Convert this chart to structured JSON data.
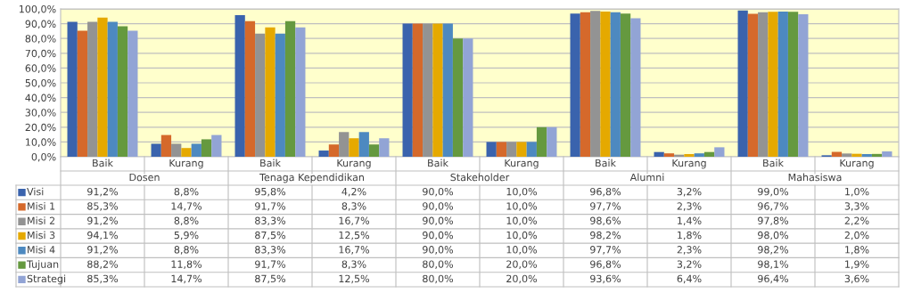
{
  "chart_data": {
    "type": "bar",
    "categories": [
      "Baik",
      "Kurang",
      "Baik",
      "Kurang",
      "Baik",
      "Kurang",
      "Baik",
      "Kurang",
      "Baik",
      "Kurang"
    ],
    "annotations": [
      "Dosen",
      "Tenaga Kependidikan",
      "Stakeholder",
      "Alumni",
      "Mahasiswa"
    ],
    "series": [
      {
        "name": "Visi",
        "color": "#3a63ad",
        "values": [
          91.2,
          8.8,
          95.8,
          4.2,
          90.0,
          10.0,
          96.8,
          3.2,
          99.0,
          1.0
        ],
        "value_labels": [
          "91,2%",
          "8,8%",
          "95,8%",
          "4,2%",
          "90,0%",
          "10,0%",
          "96,8%",
          "3,2%",
          "99,0%",
          "1,0%"
        ]
      },
      {
        "name": "Misi 1",
        "color": "#d5692b",
        "values": [
          85.3,
          14.7,
          91.7,
          8.3,
          90.0,
          10.0,
          97.7,
          2.3,
          96.7,
          3.3
        ],
        "value_labels": [
          "85,3%",
          "14,7%",
          "91,7%",
          "8,3%",
          "90,0%",
          "10,0%",
          "97,7%",
          "2,3%",
          "96,7%",
          "3,3%"
        ]
      },
      {
        "name": "Misi 2",
        "color": "#939393",
        "values": [
          91.2,
          8.8,
          83.3,
          16.7,
          90.0,
          10.0,
          98.6,
          1.4,
          97.8,
          2.2
        ],
        "value_labels": [
          "91,2%",
          "8,8%",
          "83,3%",
          "16,7%",
          "90,0%",
          "10,0%",
          "98,6%",
          "1,4%",
          "97,8%",
          "2,2%"
        ]
      },
      {
        "name": "Misi 3",
        "color": "#e5a900",
        "values": [
          94.1,
          5.9,
          87.5,
          12.5,
          90.0,
          10.0,
          98.2,
          1.8,
          98.0,
          2.0
        ],
        "value_labels": [
          "94,1%",
          "5,9%",
          "87,5%",
          "12,5%",
          "90,0%",
          "10,0%",
          "98,2%",
          "1,8%",
          "98,0%",
          "2,0%"
        ]
      },
      {
        "name": "Misi 4",
        "color": "#4d89c0",
        "values": [
          91.2,
          8.8,
          83.3,
          16.7,
          90.0,
          10.0,
          97.7,
          2.3,
          98.2,
          1.8
        ],
        "value_labels": [
          "91,2%",
          "8,8%",
          "83,3%",
          "16,7%",
          "90,0%",
          "10,0%",
          "97,7%",
          "2,3%",
          "98,2%",
          "1,8%"
        ]
      },
      {
        "name": "Tujuan",
        "color": "#65993f",
        "values": [
          88.2,
          11.8,
          91.7,
          8.3,
          80.0,
          20.0,
          96.8,
          3.2,
          98.1,
          1.9
        ],
        "value_labels": [
          "88,2%",
          "11,8%",
          "91,7%",
          "8,3%",
          "80,0%",
          "20,0%",
          "96,8%",
          "3,2%",
          "98,1%",
          "1,9%"
        ]
      },
      {
        "name": "Strategi",
        "color": "#92a4d5",
        "values": [
          85.3,
          14.7,
          87.5,
          12.5,
          80.0,
          20.0,
          93.6,
          6.4,
          96.4,
          3.6
        ],
        "value_labels": [
          "85,3%",
          "14,7%",
          "87,5%",
          "12,5%",
          "80,0%",
          "20,0%",
          "93,6%",
          "6,4%",
          "96,4%",
          "3,6%"
        ]
      }
    ],
    "ylim": [
      0,
      100
    ],
    "yticks": [
      {
        "value": 0,
        "label": "0,0%"
      },
      {
        "value": 10,
        "label": "10,0%"
      },
      {
        "value": 20,
        "label": "20,0%"
      },
      {
        "value": 30,
        "label": "30,0%"
      },
      {
        "value": 40,
        "label": "40,0%"
      },
      {
        "value": 50,
        "label": "50,0%"
      },
      {
        "value": 60,
        "label": "60,0%"
      },
      {
        "value": 70,
        "label": "70,0%"
      },
      {
        "value": 80,
        "label": "80,0%"
      },
      {
        "value": 90,
        "label": "90,0%"
      },
      {
        "value": 100,
        "label": "100,0%"
      }
    ],
    "grid": "y",
    "legend": "bottom left"
  }
}
